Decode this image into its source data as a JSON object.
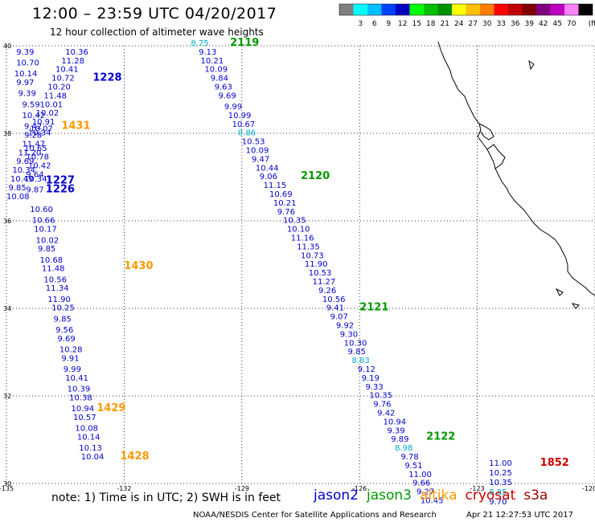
{
  "header": {
    "title": "12:00 – 23:59 UTC 04/20/2017",
    "subtitle": "12 hour collection of altimeter wave heights"
  },
  "color_scale": {
    "colors": [
      "#808080",
      "#00ffff",
      "#00bfff",
      "#0040ff",
      "#0000c0",
      "#00ff00",
      "#00c000",
      "#009000",
      "#ffff00",
      "#ffc000",
      "#ff8000",
      "#ff0000",
      "#c00000",
      "#800000",
      "#800080",
      "#c000c0",
      "#ff80ff",
      "#000000"
    ],
    "ticks": [
      "3",
      "6",
      "9",
      "12",
      "15",
      "18",
      "21",
      "24",
      "27",
      "30",
      "33",
      "36",
      "39",
      "42",
      "45",
      "70"
    ],
    "unit": "(ft)"
  },
  "map": {
    "lon_range": [
      -135,
      -120
    ],
    "lat_range": [
      30,
      40
    ],
    "lon_labels": [
      "-135",
      "-132",
      "-129",
      "-126",
      "-123",
      "-120"
    ],
    "lat_labels": [
      "40",
      "38",
      "36",
      "34",
      "32",
      "30"
    ],
    "grid": "dotted",
    "satellite_colors": {
      "jason2": "#0000cc",
      "jason3": "#009900",
      "altika": "#ff9900",
      "cryosat": "#cc0000",
      "s3a": "#990000",
      "highlight": "#00aacc"
    },
    "coast_color": "#000000"
  },
  "observations": [
    {
      "lon": -133.5,
      "lat": 39.8,
      "v": "10.36",
      "c": "jason2"
    },
    {
      "lon": -133.6,
      "lat": 39.6,
      "v": "11.28",
      "c": "jason2"
    },
    {
      "lon": -133.75,
      "lat": 39.4,
      "v": "10.41",
      "c": "jason2"
    },
    {
      "lon": -133.85,
      "lat": 39.2,
      "v": "10.72",
      "c": "jason2"
    },
    {
      "lon": -133.95,
      "lat": 39.0,
      "v": "10.20",
      "c": "jason2"
    },
    {
      "lon": -134.05,
      "lat": 38.8,
      "v": "11.48",
      "c": "jason2"
    },
    {
      "lon": -134.15,
      "lat": 38.6,
      "v": "10.01",
      "c": "jason2"
    },
    {
      "lon": -134.25,
      "lat": 38.4,
      "v": "10.02",
      "c": "jason2"
    },
    {
      "lon": -134.35,
      "lat": 38.2,
      "v": "10.91",
      "c": "jason2"
    },
    {
      "lon": -134.4,
      "lat": 38.05,
      "v": "10.07",
      "c": "jason2"
    },
    {
      "lon": -134.45,
      "lat": 37.95,
      "v": "10.34",
      "c": "jason2"
    },
    {
      "lon": -134.55,
      "lat": 37.6,
      "v": "10.65",
      "c": "jason2"
    },
    {
      "lon": -134.5,
      "lat": 37.4,
      "v": "10.78",
      "c": "jason2"
    },
    {
      "lon": -134.45,
      "lat": 37.2,
      "v": "10.42",
      "c": "jason2"
    },
    {
      "lon": -134.5,
      "lat": 37.0,
      "v": "9.64",
      "c": "jason2"
    },
    {
      "lon": -134.55,
      "lat": 36.9,
      "v": "10.34",
      "c": "jason2"
    },
    {
      "lon": -134.5,
      "lat": 36.65,
      "v": "9.87",
      "c": "jason2"
    },
    {
      "lon": -134.75,
      "lat": 39.8,
      "v": "9.39",
      "c": "jason2"
    },
    {
      "lon": -134.75,
      "lat": 39.55,
      "v": "10.70",
      "c": "jason2"
    },
    {
      "lon": -134.8,
      "lat": 39.3,
      "v": "10.14",
      "c": "jason2"
    },
    {
      "lon": -134.75,
      "lat": 39.1,
      "v": "9.97",
      "c": "jason2"
    },
    {
      "lon": -134.7,
      "lat": 38.85,
      "v": "9.39",
      "c": "jason2"
    },
    {
      "lon": -134.6,
      "lat": 38.6,
      "v": "9.59",
      "c": "jason2"
    },
    {
      "lon": -134.6,
      "lat": 38.35,
      "v": "10.42",
      "c": "jason2"
    },
    {
      "lon": -134.55,
      "lat": 38.1,
      "v": "9.42",
      "c": "jason2"
    },
    {
      "lon": -134.55,
      "lat": 37.9,
      "v": "9.28",
      "c": "jason2"
    },
    {
      "lon": -134.6,
      "lat": 37.7,
      "v": "11.47",
      "c": "jason2"
    },
    {
      "lon": -134.7,
      "lat": 37.5,
      "v": "11.20",
      "c": "jason2"
    },
    {
      "lon": -134.75,
      "lat": 37.3,
      "v": "9.69",
      "c": "jason2"
    },
    {
      "lon": -134.85,
      "lat": 37.1,
      "v": "10.34",
      "c": "jason2"
    },
    {
      "lon": -134.9,
      "lat": 36.9,
      "v": "10.49",
      "c": "jason2"
    },
    {
      "lon": -134.95,
      "lat": 36.7,
      "v": "9.85",
      "c": "jason2"
    },
    {
      "lon": -135.0,
      "lat": 36.5,
      "v": "10.08",
      "c": "jason2"
    },
    {
      "lon": -134.4,
      "lat": 36.2,
      "v": "10.60",
      "c": "jason2"
    },
    {
      "lon": -134.35,
      "lat": 35.95,
      "v": "10.66",
      "c": "jason2"
    },
    {
      "lon": -134.3,
      "lat": 35.75,
      "v": "10.17",
      "c": "jason2"
    },
    {
      "lon": -134.25,
      "lat": 35.5,
      "v": "10.02",
      "c": "jason2"
    },
    {
      "lon": -134.2,
      "lat": 35.3,
      "v": "9.85",
      "c": "jason2"
    },
    {
      "lon": -134.15,
      "lat": 35.05,
      "v": "10.68",
      "c": "jason2"
    },
    {
      "lon": -134.1,
      "lat": 34.85,
      "v": "11.48",
      "c": "jason2"
    },
    {
      "lon": -134.05,
      "lat": 34.6,
      "v": "10.56",
      "c": "jason2"
    },
    {
      "lon": -134.0,
      "lat": 34.4,
      "v": "11.34",
      "c": "jason2"
    },
    {
      "lon": -133.95,
      "lat": 34.15,
      "v": "11.90",
      "c": "jason2"
    },
    {
      "lon": -133.85,
      "lat": 33.95,
      "v": "10.25",
      "c": "jason2"
    },
    {
      "lon": -133.8,
      "lat": 33.7,
      "v": "9.85",
      "c": "jason2"
    },
    {
      "lon": -133.75,
      "lat": 33.45,
      "v": "9.56",
      "c": "jason2"
    },
    {
      "lon": -133.7,
      "lat": 33.25,
      "v": "9.69",
      "c": "jason2"
    },
    {
      "lon": -133.65,
      "lat": 33.0,
      "v": "10.28",
      "c": "jason2"
    },
    {
      "lon": -133.6,
      "lat": 32.8,
      "v": "9.91",
      "c": "jason2"
    },
    {
      "lon": -133.55,
      "lat": 32.55,
      "v": "9.99",
      "c": "jason2"
    },
    {
      "lon": -133.5,
      "lat": 32.35,
      "v": "10.41",
      "c": "jason2"
    },
    {
      "lon": -133.45,
      "lat": 32.1,
      "v": "10.39",
      "c": "jason2"
    },
    {
      "lon": -133.4,
      "lat": 31.9,
      "v": "10.38",
      "c": "jason2"
    },
    {
      "lon": -133.35,
      "lat": 31.65,
      "v": "10.94",
      "c": "jason2"
    },
    {
      "lon": -133.3,
      "lat": 31.45,
      "v": "10.57",
      "c": "jason2"
    },
    {
      "lon": -133.25,
      "lat": 31.2,
      "v": "10.08",
      "c": "jason2"
    },
    {
      "lon": -133.2,
      "lat": 31.0,
      "v": "10.14",
      "c": "jason2"
    },
    {
      "lon": -133.15,
      "lat": 30.75,
      "v": "10.13",
      "c": "jason2"
    },
    {
      "lon": -133.1,
      "lat": 30.55,
      "v": "10.04",
      "c": "jason2"
    },
    {
      "lon": -130.3,
      "lat": 40.0,
      "v": "8.75",
      "c": "highlight"
    },
    {
      "lon": -130.1,
      "lat": 39.8,
      "v": "9.13",
      "c": "jason2"
    },
    {
      "lon": -130.05,
      "lat": 39.6,
      "v": "10.21",
      "c": "jason2"
    },
    {
      "lon": -129.95,
      "lat": 39.4,
      "v": "10.09",
      "c": "jason2"
    },
    {
      "lon": -129.8,
      "lat": 39.2,
      "v": "9.84",
      "c": "jason2"
    },
    {
      "lon": -129.7,
      "lat": 39.0,
      "v": "9.63",
      "c": "jason2"
    },
    {
      "lon": -129.6,
      "lat": 38.8,
      "v": "9.69",
      "c": "jason2"
    },
    {
      "lon": -129.45,
      "lat": 38.55,
      "v": "9.99",
      "c": "jason2"
    },
    {
      "lon": -129.35,
      "lat": 38.35,
      "v": "10.99",
      "c": "jason2"
    },
    {
      "lon": -129.25,
      "lat": 38.15,
      "v": "10.67",
      "c": "jason2"
    },
    {
      "lon": -129.1,
      "lat": 37.95,
      "v": "8.86",
      "c": "highlight"
    },
    {
      "lon": -129.0,
      "lat": 37.75,
      "v": "10.53",
      "c": "jason2"
    },
    {
      "lon": -128.9,
      "lat": 37.55,
      "v": "10.09",
      "c": "jason2"
    },
    {
      "lon": -128.75,
      "lat": 37.35,
      "v": "9.47",
      "c": "jason2"
    },
    {
      "lon": -128.65,
      "lat": 37.15,
      "v": "10.44",
      "c": "jason2"
    },
    {
      "lon": -128.55,
      "lat": 36.95,
      "v": "9.06",
      "c": "jason2"
    },
    {
      "lon": -128.45,
      "lat": 36.75,
      "v": "11.15",
      "c": "jason2"
    },
    {
      "lon": -128.3,
      "lat": 36.55,
      "v": "10.69",
      "c": "jason2"
    },
    {
      "lon": -128.2,
      "lat": 36.35,
      "v": "10.21",
      "c": "jason2"
    },
    {
      "lon": -128.1,
      "lat": 36.15,
      "v": "9.76",
      "c": "jason2"
    },
    {
      "lon": -127.95,
      "lat": 35.95,
      "v": "10.35",
      "c": "jason2"
    },
    {
      "lon": -127.85,
      "lat": 35.75,
      "v": "10.10",
      "c": "jason2"
    },
    {
      "lon": -127.75,
      "lat": 35.55,
      "v": "11.16",
      "c": "jason2"
    },
    {
      "lon": -127.6,
      "lat": 35.35,
      "v": "11.35",
      "c": "jason2"
    },
    {
      "lon": -127.5,
      "lat": 35.15,
      "v": "10.73",
      "c": "jason2"
    },
    {
      "lon": -127.4,
      "lat": 34.95,
      "v": "11.90",
      "c": "jason2"
    },
    {
      "lon": -127.3,
      "lat": 34.75,
      "v": "10.53",
      "c": "jason2"
    },
    {
      "lon": -127.2,
      "lat": 34.55,
      "v": "11.27",
      "c": "jason2"
    },
    {
      "lon": -127.05,
      "lat": 34.35,
      "v": "9.26",
      "c": "jason2"
    },
    {
      "lon": -126.95,
      "lat": 34.15,
      "v": "10.56",
      "c": "jason2"
    },
    {
      "lon": -126.85,
      "lat": 33.95,
      "v": "9.41",
      "c": "jason2"
    },
    {
      "lon": -126.75,
      "lat": 33.75,
      "v": "9.07",
      "c": "jason2"
    },
    {
      "lon": -126.6,
      "lat": 33.55,
      "v": "9.92",
      "c": "jason2"
    },
    {
      "lon": -126.5,
      "lat": 33.35,
      "v": "9.30",
      "c": "jason2"
    },
    {
      "lon": -126.4,
      "lat": 33.15,
      "v": "10.30",
      "c": "jason2"
    },
    {
      "lon": -126.3,
      "lat": 32.95,
      "v": "9.85",
      "c": "jason2"
    },
    {
      "lon": -126.2,
      "lat": 32.75,
      "v": "8.83",
      "c": "highlight"
    },
    {
      "lon": -126.05,
      "lat": 32.55,
      "v": "9.12",
      "c": "jason2"
    },
    {
      "lon": -125.95,
      "lat": 32.35,
      "v": "9.19",
      "c": "jason2"
    },
    {
      "lon": -125.85,
      "lat": 32.15,
      "v": "9.33",
      "c": "jason2"
    },
    {
      "lon": -125.75,
      "lat": 31.95,
      "v": "10.35",
      "c": "jason2"
    },
    {
      "lon": -125.65,
      "lat": 31.75,
      "v": "9.76",
      "c": "jason2"
    },
    {
      "lon": -125.55,
      "lat": 31.55,
      "v": "9.42",
      "c": "jason2"
    },
    {
      "lon": -125.4,
      "lat": 31.35,
      "v": "10.94",
      "c": "jason2"
    },
    {
      "lon": -125.3,
      "lat": 31.15,
      "v": "9.39",
      "c": "jason2"
    },
    {
      "lon": -125.2,
      "lat": 30.95,
      "v": "9.89",
      "c": "jason2"
    },
    {
      "lon": -125.1,
      "lat": 30.75,
      "v": "8.98",
      "c": "highlight"
    },
    {
      "lon": -124.95,
      "lat": 30.55,
      "v": "9.78",
      "c": "jason2"
    },
    {
      "lon": -124.85,
      "lat": 30.35,
      "v": "9.51",
      "c": "jason2"
    },
    {
      "lon": -124.75,
      "lat": 30.15,
      "v": "11.00",
      "c": "jason2"
    },
    {
      "lon": -124.65,
      "lat": 29.95,
      "v": "9.66",
      "c": "jason2"
    },
    {
      "lon": -124.55,
      "lat": 29.75,
      "v": "9.27",
      "c": "jason2"
    },
    {
      "lon": -124.45,
      "lat": 29.55,
      "v": "10.45",
      "c": "jason2"
    },
    {
      "lon": -122.7,
      "lat": 30.4,
      "v": "11.00",
      "c": "jason2"
    },
    {
      "lon": -122.7,
      "lat": 30.18,
      "v": "10.25",
      "c": "jason2"
    },
    {
      "lon": -122.7,
      "lat": 29.96,
      "v": "10.35",
      "c": "jason2"
    },
    {
      "lon": -122.7,
      "lat": 29.74,
      "v": "8.85",
      "c": "highlight"
    },
    {
      "lon": -122.7,
      "lat": 29.52,
      "v": "9.70",
      "c": "jason2"
    }
  ],
  "pass_labels": [
    {
      "lon": -132.8,
      "lat": 39.2,
      "v": "1228",
      "c": "jason2"
    },
    {
      "lon": -133.6,
      "lat": 38.1,
      "v": "1431",
      "c": "altika"
    },
    {
      "lon": -134.0,
      "lat": 36.85,
      "v": "1227",
      "c": "jason2"
    },
    {
      "lon": -134.0,
      "lat": 36.65,
      "v": "1226",
      "c": "jason2"
    },
    {
      "lon": -132.0,
      "lat": 34.9,
      "v": "1430",
      "c": "altika"
    },
    {
      "lon": -132.7,
      "lat": 31.65,
      "v": "1429",
      "c": "altika"
    },
    {
      "lon": -132.1,
      "lat": 30.55,
      "v": "1428",
      "c": "altika"
    },
    {
      "lon": -129.3,
      "lat": 40.0,
      "v": "2119",
      "c": "jason3"
    },
    {
      "lon": -127.5,
      "lat": 36.95,
      "v": "2120",
      "c": "jason3"
    },
    {
      "lon": -126.0,
      "lat": 33.95,
      "v": "2121",
      "c": "jason3"
    },
    {
      "lon": -124.3,
      "lat": 31.0,
      "v": "2122",
      "c": "jason3"
    },
    {
      "lon": -121.4,
      "lat": 30.4,
      "v": "1852",
      "c": "cryosat"
    }
  ],
  "footer": {
    "note": "note: 1) Time is in UTC; 2) SWH is in feet",
    "legend": [
      {
        "label": "jason2",
        "color": "#0000cc"
      },
      {
        "label": "jason3",
        "color": "#009900"
      },
      {
        "label": "altika",
        "color": "#ff9900"
      },
      {
        "label": "cryosat",
        "color": "#cc0000"
      },
      {
        "label": "s3a",
        "color": "#990000"
      }
    ],
    "credit": "NOAA/NESDIS Center for Satellite Applications and Research",
    "timestamp": "Apr 21 12:27:53 UTC 2017"
  }
}
